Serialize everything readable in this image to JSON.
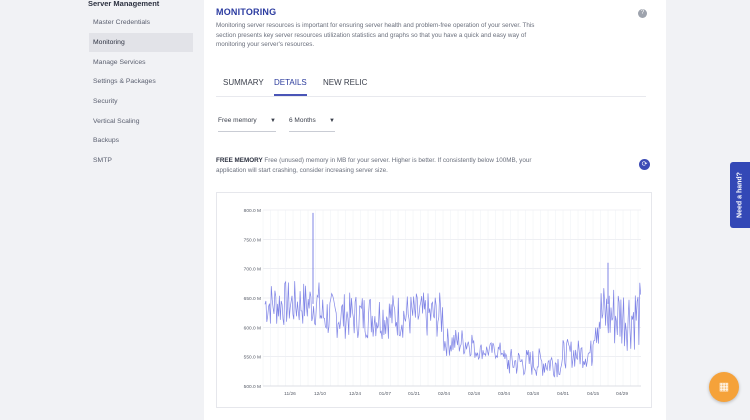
{
  "sidebar": {
    "header": "Server Management",
    "items": [
      {
        "label": "Master Credentials",
        "active": false
      },
      {
        "label": "Monitoring",
        "active": true
      },
      {
        "label": "Manage Services",
        "active": false
      },
      {
        "label": "Settings & Packages",
        "active": false
      },
      {
        "label": "Security",
        "active": false
      },
      {
        "label": "Vertical Scaling",
        "active": false
      },
      {
        "label": "Backups",
        "active": false
      },
      {
        "label": "SMTP",
        "active": false
      }
    ]
  },
  "main": {
    "title": "MONITORING",
    "help_icon": "?",
    "intro": "Monitoring server resources is important for ensuring server health and problem-free operation of your server. This section presents key server resources utilization statistics and graphs so that you have a quick and easy way of monitoring your server's resources.",
    "tabs": [
      {
        "label": "SUMMARY",
        "active": false
      },
      {
        "label": "DETAILS",
        "active": true
      },
      {
        "label": "NEW RELIC",
        "active": false
      }
    ],
    "metric_select": "Free memory",
    "range_select": "6 Months",
    "desc_title": "FREE MEMORY",
    "desc_text": " Free (unused) memory in MB for your server. Higher is better. If consistently below 100MB, your application will start crashing, consider increasing server size.",
    "refresh_icon": "refresh-icon"
  },
  "chart_data": {
    "type": "line",
    "series_color": "#7f84e6",
    "ylim": [
      500,
      800
    ],
    "y_ticks": [
      "800.0 M",
      "750.0 M",
      "700.0 M",
      "650.0 M",
      "600.0 M",
      "550.0 M",
      "500.0 M"
    ],
    "x_ticks": [
      "11/26",
      "12/10",
      "12/24",
      "01/07",
      "01/21",
      "02/04",
      "02/18",
      "03/04",
      "03/18",
      "04/01",
      "04/15",
      "04/29"
    ],
    "segments": [
      {
        "from": "11/19",
        "to": "12/10",
        "min": 600,
        "max": 680
      },
      {
        "from": "12/10",
        "to": "02/04",
        "min": 580,
        "max": 660
      },
      {
        "from": "02/04",
        "to": "02/18",
        "min": 550,
        "max": 600
      },
      {
        "from": "02/18",
        "to": "03/04",
        "min": 545,
        "max": 575
      },
      {
        "from": "03/04",
        "to": "04/01",
        "min": 515,
        "max": 565
      },
      {
        "from": "04/01",
        "to": "04/15",
        "min": 530,
        "max": 580
      },
      {
        "from": "04/15",
        "to": "05/06",
        "min": 560,
        "max": 680
      }
    ],
    "peaks": [
      {
        "x": "12/07",
        "y": 795
      },
      {
        "x": "04/22",
        "y": 710
      }
    ]
  },
  "widgets": {
    "need_hand": "Need a hand?",
    "fab_icon": "grid-icon"
  }
}
